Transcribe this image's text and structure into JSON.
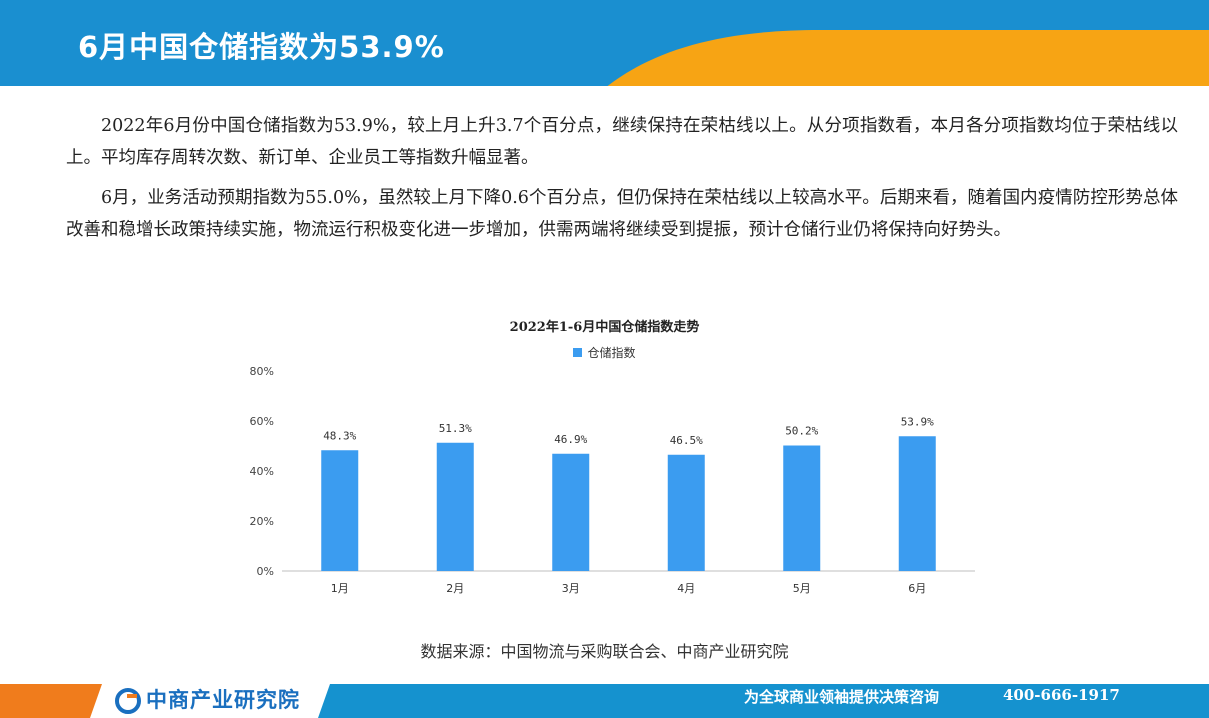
{
  "header": {
    "title": "6月中国仓储指数为53.9%"
  },
  "paragraphs": [
    "2022年6月份中国仓储指数为53.9%，较上月上升3.7个百分点，继续保持在荣枯线以上。从分项指数看，本月各分项指数均位于荣枯线以上。平均库存周转次数、新订单、企业员工等指数升幅显著。",
    "6月，业务活动预期指数为55.0%，虽然较上月下降0.6个百分点，但仍保持在荣枯线以上较高水平。后期来看，随着国内疫情防控形势总体改善和稳增长政策持续实施，物流运行积极变化进一步增加，供需两端将继续受到提振，预计仓储行业仍将保持向好势头。"
  ],
  "chart_data": {
    "type": "bar",
    "title": "2022年1-6月中国仓储指数走势",
    "categories": [
      "1月",
      "2月",
      "3月",
      "4月",
      "5月",
      "6月"
    ],
    "series": [
      {
        "name": "仓储指数",
        "values": [
          48.3,
          51.3,
          46.9,
          46.5,
          50.2,
          53.9
        ],
        "labels": [
          "48.3%",
          "51.3%",
          "46.9%",
          "46.5%",
          "50.2%",
          "53.9%"
        ]
      }
    ],
    "yticks": [
      "0%",
      "20%",
      "40%",
      "60%",
      "80%"
    ],
    "ylim": [
      0,
      80
    ],
    "grid": false,
    "legend": "top-center",
    "bar_color": "#3b9cf0"
  },
  "source": "数据来源：中国物流与采购联合会、中商产业研究院",
  "footer": {
    "logo_text": "中商产业研究院",
    "slogan": "为全球商业领袖提供决策咨询",
    "phone": "400-666-1917"
  },
  "colors": {
    "header_blue": "#1a8fd0",
    "header_orange": "#f7a414",
    "footer_orange": "#f07c1c",
    "footer_blue": "#1592cf",
    "logo_blue": "#1a6fbf"
  }
}
